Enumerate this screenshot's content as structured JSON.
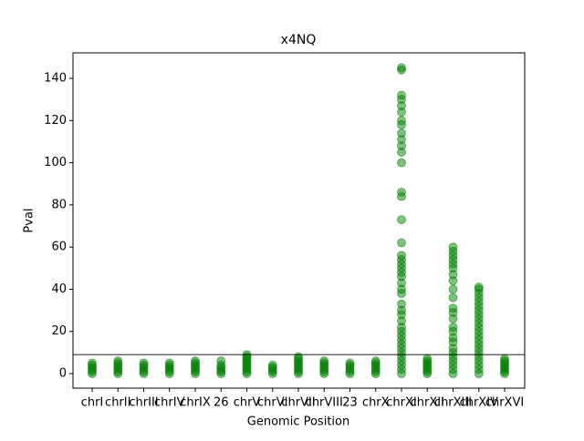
{
  "chart_data": {
    "type": "scatter",
    "title": "x4NQ",
    "x_label": "Genomic Position",
    "y_label": "Pval",
    "categories": [
      "chrI",
      "chrII",
      "chrIII",
      "chrIV",
      "chrIX",
      "26",
      "chrV",
      "chrVI",
      "chrVII",
      "chrVIII",
      "23",
      "chrX",
      "chrXI",
      "chrXII",
      "chrXIII",
      "chrXIV",
      "chrXVI"
    ],
    "values": [
      [
        0,
        1,
        2,
        3,
        4,
        5
      ],
      [
        0,
        1,
        2,
        3,
        4,
        5,
        6
      ],
      [
        0,
        1,
        2,
        3,
        4,
        5
      ],
      [
        0,
        1,
        2,
        3,
        4,
        5
      ],
      [
        0,
        1,
        2,
        3,
        4,
        5,
        6
      ],
      [
        0,
        1,
        2,
        3,
        4,
        6
      ],
      [
        0,
        1,
        2,
        3,
        4,
        5,
        6,
        7,
        8,
        9
      ],
      [
        0,
        1,
        2,
        3,
        4
      ],
      [
        0,
        1,
        2,
        3,
        4,
        5,
        6,
        7,
        8
      ],
      [
        0,
        1,
        2,
        3,
        4,
        5,
        6
      ],
      [
        0,
        1,
        2,
        3,
        4,
        5
      ],
      [
        0,
        1,
        2,
        3,
        4,
        5,
        6
      ],
      [
        0,
        2,
        4,
        6,
        8,
        10,
        12,
        14,
        16,
        18,
        20,
        22,
        25,
        28,
        30,
        33,
        38,
        40,
        43,
        46,
        48,
        50,
        52,
        54,
        56,
        62,
        73,
        84,
        86,
        100,
        105,
        108,
        111,
        114,
        118,
        120,
        124,
        127,
        130,
        132,
        144,
        145
      ],
      [
        0,
        1,
        2,
        3,
        4,
        5,
        6,
        7
      ],
      [
        0,
        2,
        4,
        6,
        8,
        10,
        12,
        15,
        17,
        20,
        22,
        26,
        29,
        31,
        36,
        40,
        44,
        47,
        50,
        52,
        54,
        56,
        58,
        60
      ],
      [
        0,
        2,
        4,
        6,
        8,
        10,
        12,
        14,
        16,
        18,
        20,
        22,
        24,
        26,
        28,
        30,
        32,
        34,
        36,
        38,
        40,
        41
      ],
      [
        0,
        1,
        2,
        3,
        4,
        5,
        6,
        7
      ]
    ],
    "color": "green",
    "threshold": 9,
    "ylim": [
      -6.9,
      152.1
    ],
    "yticks": [
      0,
      20,
      40,
      60,
      80,
      100,
      120,
      140
    ]
  }
}
